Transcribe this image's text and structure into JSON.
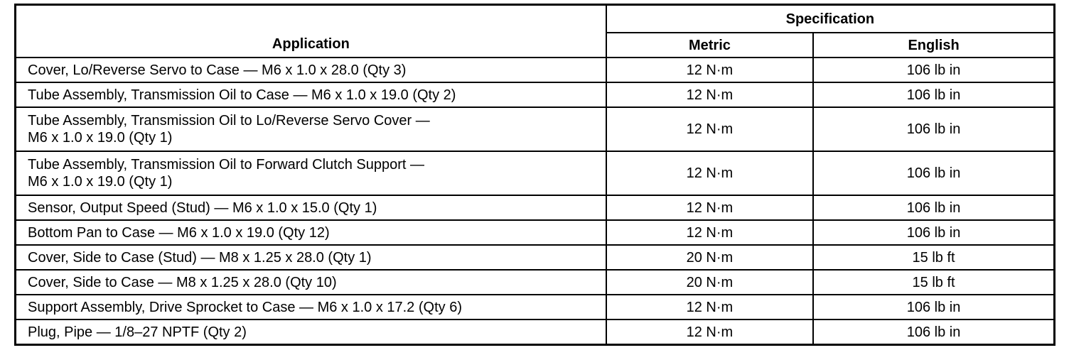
{
  "header": {
    "application": "Application",
    "specification": "Specification",
    "metric": "Metric",
    "english": "English"
  },
  "rows": [
    {
      "application": "Cover, Lo/Reverse Servo to Case — M6 x 1.0 x 28.0 (Qty 3)",
      "metric": "12 N·m",
      "english": "106 lb in"
    },
    {
      "application": "Tube Assembly, Transmission Oil to Case — M6 x 1.0 x 19.0 (Qty 2)",
      "metric": "12 N·m",
      "english": "106 lb in"
    },
    {
      "application": "Tube Assembly, Transmission Oil to Lo/Reverse Servo Cover —",
      "application_line2": "M6 x 1.0 x 19.0 (Qty 1)",
      "metric": "12 N·m",
      "english": "106 lb in"
    },
    {
      "application": "Tube Assembly, Transmission Oil to Forward Clutch Support —",
      "application_line2": "M6 x 1.0 x 19.0 (Qty 1)",
      "metric": "12 N·m",
      "english": "106 lb in"
    },
    {
      "application": "Sensor, Output Speed (Stud) — M6 x 1.0 x 15.0 (Qty 1)",
      "metric": "12 N·m",
      "english": "106 lb in"
    },
    {
      "application": "Bottom Pan to Case — M6 x 1.0 x 19.0 (Qty 12)",
      "metric": "12 N·m",
      "english": "106 lb in"
    },
    {
      "application": "Cover, Side to Case (Stud) — M8 x 1.25 x 28.0 (Qty 1)",
      "metric": "20 N·m",
      "english": "15 lb ft"
    },
    {
      "application": "Cover, Side to Case — M8 x 1.25 x 28.0 (Qty 10)",
      "metric": "20 N·m",
      "english": "15 lb ft"
    },
    {
      "application": "Support Assembly, Drive Sprocket to Case — M6 x 1.0 x 17.2 (Qty 6)",
      "metric": "12 N·m",
      "english": "106 lb in"
    },
    {
      "application": "Plug, Pipe — 1/8–27 NPTF (Qty 2)",
      "metric": "12 N·m",
      "english": "106 lb in"
    }
  ]
}
